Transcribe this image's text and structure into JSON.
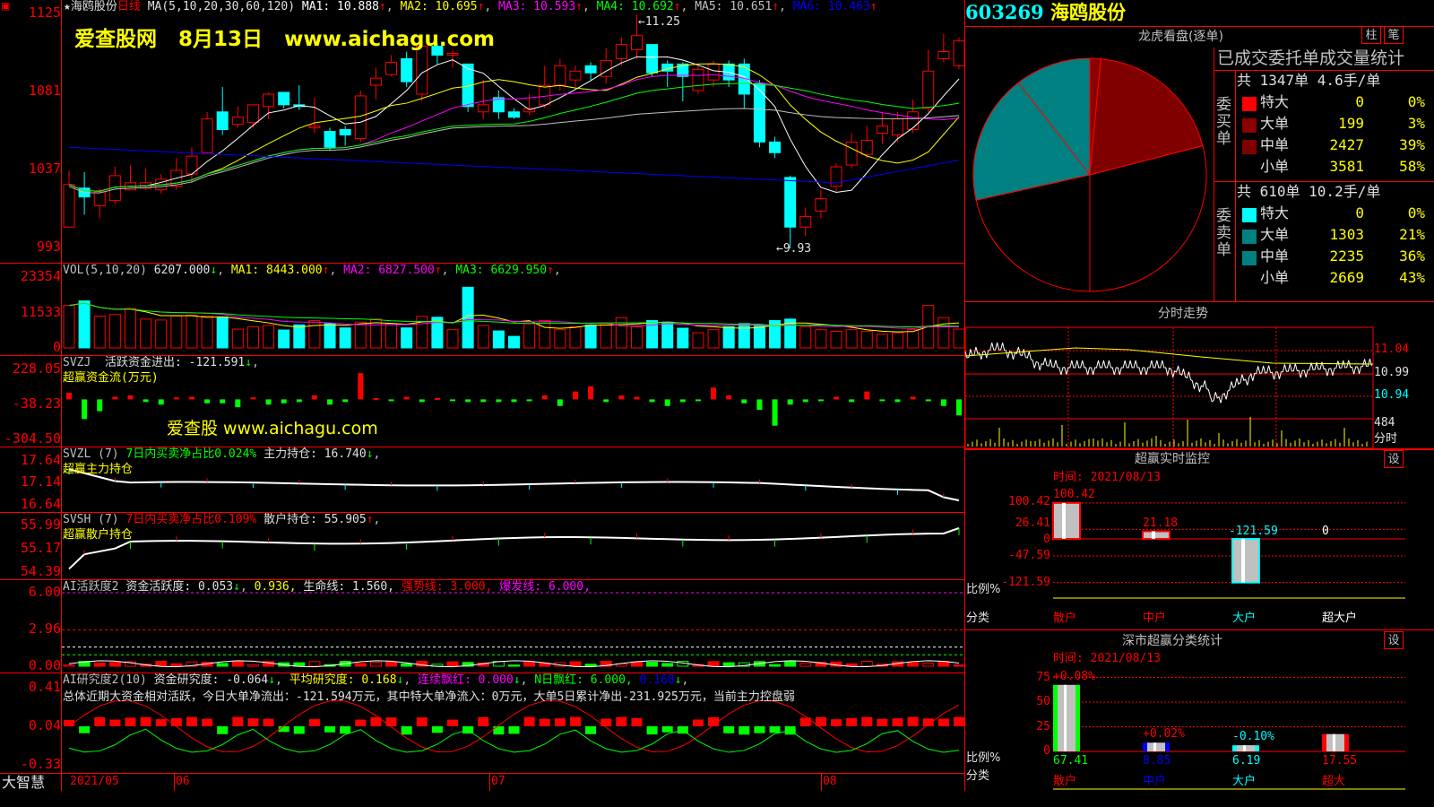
{
  "stock": {
    "code": "603269",
    "name": "海鸥股份",
    "period": "日线",
    "star": "★"
  },
  "watermark": {
    "site": "爱查股网",
    "date": "8月13日",
    "url": "www.aichagu.com",
    "small": "爱查股 www.aichagu.com"
  },
  "main": {
    "ma_params": "MA(5,10,20,30,60,120)",
    "ma": [
      {
        "label": "MA1:",
        "value": "10.888",
        "dir": "↑",
        "color": "#ffffff"
      },
      {
        "label": "MA2:",
        "value": "10.695",
        "dir": "↑",
        "color": "#ffff00"
      },
      {
        "label": "MA3:",
        "value": "10.593",
        "dir": "↑",
        "color": "#ff00ff"
      },
      {
        "label": "MA4:",
        "value": "10.692",
        "dir": "↑",
        "color": "#00ff00"
      },
      {
        "label": "MA5:",
        "value": "10.651",
        "dir": "↑",
        "color": "#c0c0c0"
      },
      {
        "label": "MA6:",
        "value": "10.463",
        "dir": "↑",
        "color": "#0000ff"
      }
    ],
    "axis": [
      "1125",
      "1081",
      "1037",
      "993"
    ],
    "high_marker": "11.25",
    "low_marker": "9.93",
    "candles": [
      [
        10.05,
        10.29,
        10.37,
        10.05
      ],
      [
        10.27,
        10.22,
        10.36,
        10.12
      ],
      [
        10.17,
        10.25,
        10.27,
        10.1
      ],
      [
        10.2,
        10.34,
        10.39,
        10.18
      ],
      [
        10.26,
        10.3,
        10.4,
        10.26
      ],
      [
        10.27,
        10.3,
        10.38,
        10.26
      ],
      [
        10.26,
        10.32,
        10.35,
        10.24
      ],
      [
        10.28,
        10.37,
        10.44,
        10.26
      ],
      [
        10.35,
        10.45,
        10.5,
        10.3
      ],
      [
        10.47,
        10.66,
        10.7,
        10.46
      ],
      [
        10.7,
        10.6,
        10.84,
        10.57
      ],
      [
        10.63,
        10.67,
        10.73,
        10.61
      ],
      [
        10.64,
        10.74,
        10.74,
        10.61
      ],
      [
        10.73,
        10.8,
        10.81,
        10.66
      ],
      [
        10.81,
        10.74,
        10.81,
        10.72
      ],
      [
        10.74,
        10.73,
        10.85,
        10.71
      ],
      [
        10.61,
        10.62,
        10.78,
        10.58
      ],
      [
        10.59,
        10.5,
        10.61,
        10.48
      ],
      [
        10.6,
        10.57,
        10.62,
        10.51
      ],
      [
        10.55,
        10.79,
        10.82,
        10.53
      ],
      [
        10.85,
        10.89,
        10.95,
        10.77
      ],
      [
        10.91,
        10.98,
        11.02,
        10.9
      ],
      [
        11.0,
        10.87,
        11.04,
        10.84
      ],
      [
        10.8,
        11.07,
        11.08,
        10.76
      ],
      [
        11.07,
        11.02,
        11.09,
        10.97
      ],
      [
        11.02,
        11.03,
        11.05,
        10.95
      ],
      [
        10.97,
        10.73,
        10.97,
        10.7
      ],
      [
        10.7,
        10.74,
        10.88,
        10.66
      ],
      [
        10.78,
        10.7,
        10.82,
        10.66
      ],
      [
        10.7,
        10.67,
        10.72,
        10.66
      ],
      [
        10.7,
        10.72,
        10.8,
        10.68
      ],
      [
        10.74,
        10.85,
        10.96,
        10.72
      ],
      [
        10.85,
        10.96,
        11.0,
        10.82
      ],
      [
        10.88,
        10.93,
        10.96,
        10.84
      ],
      [
        10.96,
        10.92,
        10.98,
        10.88
      ],
      [
        10.9,
        10.99,
        11.06,
        10.86
      ],
      [
        11.0,
        11.08,
        11.12,
        10.96
      ],
      [
        11.05,
        11.13,
        11.25,
        11.0
      ],
      [
        11.08,
        10.92,
        11.08,
        10.9
      ],
      [
        10.97,
        10.93,
        10.99,
        10.84
      ],
      [
        10.97,
        10.9,
        10.98,
        10.76
      ],
      [
        10.82,
        10.94,
        10.96,
        10.8
      ],
      [
        10.88,
        10.97,
        10.99,
        10.84
      ],
      [
        10.97,
        10.88,
        10.99,
        10.84
      ],
      [
        10.97,
        10.8,
        11.0,
        10.72
      ],
      [
        10.86,
        10.53,
        10.88,
        10.5
      ],
      [
        10.53,
        10.47,
        10.56,
        10.44
      ],
      [
        10.33,
        10.05,
        10.34,
        9.93
      ],
      [
        10.05,
        10.11,
        10.16,
        10.0
      ],
      [
        10.14,
        10.21,
        10.26,
        10.1
      ],
      [
        10.28,
        10.39,
        10.41,
        10.25
      ],
      [
        10.4,
        10.53,
        10.58,
        10.38
      ],
      [
        10.46,
        10.54,
        10.62,
        10.44
      ],
      [
        10.58,
        10.62,
        10.7,
        10.52
      ],
      [
        10.57,
        10.66,
        10.7,
        10.53
      ],
      [
        10.6,
        10.7,
        10.77,
        10.58
      ],
      [
        10.72,
        10.93,
        11.05,
        10.7
      ],
      [
        11.0,
        11.04,
        11.14,
        10.98
      ],
      [
        10.96,
        11.1,
        11.12,
        10.94
      ]
    ]
  },
  "vol": {
    "title": "VOL(5,10,20)",
    "value": "6207.000",
    "dir": "↓",
    "ma": [
      {
        "label": "MA1:",
        "value": "8443.000",
        "dir": "↑",
        "color": "#ffff00"
      },
      {
        "label": "MA2:",
        "value": "6827.500",
        "dir": "↑",
        "color": "#ff00ff"
      },
      {
        "label": "MA3:",
        "value": "6629.950",
        "dir": "↑",
        "color": "#00ff00"
      }
    ],
    "axis": [
      "23354",
      "11533",
      "0"
    ],
    "values": [
      14000,
      15500,
      10500,
      11000,
      13000,
      9500,
      9200,
      10500,
      10800,
      10500,
      10200,
      6200,
      7000,
      7400,
      5900,
      7600,
      9000,
      8000,
      6600,
      8500,
      9500,
      7800,
      6600,
      10400,
      10100,
      6000,
      20000,
      7400,
      5600,
      3800,
      8000,
      9000,
      6000,
      7000,
      7500,
      8000,
      10000,
      7000,
      9000,
      8500,
      6500,
      5000,
      6000,
      7000,
      8000,
      7500,
      9000,
      9500,
      7000,
      6000,
      5500,
      6000,
      5500,
      4500,
      5000,
      6000,
      14000,
      10000,
      6207
    ]
  },
  "svzj": {
    "title": "SVZJ",
    "label": "活跃资金进出:",
    "value": "-121.591",
    "dir": "↓",
    "sub": "超赢资金流(万元)",
    "axis": [
      "228.05",
      "-38.23",
      "-304.50"
    ],
    "values": [
      50,
      -150,
      -90,
      20,
      30,
      -20,
      -40,
      15,
      20,
      -30,
      -30,
      -60,
      15,
      -40,
      -30,
      -20,
      30,
      -40,
      -20,
      200,
      10,
      -10,
      20,
      -20,
      10,
      -10,
      -20,
      -20,
      -20,
      -20,
      -10,
      30,
      -50,
      60,
      100,
      -20,
      30,
      20,
      -20,
      -50,
      -20,
      -10,
      90,
      30,
      -30,
      -80,
      -200,
      -40,
      -20,
      -10,
      20,
      -20,
      60,
      -10,
      -20,
      20,
      -10,
      -50,
      -121.6
    ]
  },
  "svzl": {
    "title": "SVZL  (7)",
    "ratio": "7日内买卖净占比0.024%",
    "label": "主力持仓:",
    "value": "16.740",
    "dir": "↓",
    "sub": "超赢主力持仓",
    "axis": [
      "17.64",
      "17.14",
      "16.64"
    ]
  },
  "svsh": {
    "title": "SVSH  (7)",
    "ratio": "7日内买卖净占比0.109%",
    "label": "散户持仓:",
    "value": "55.905",
    "dir": "↑",
    "sub": "超赢散户持仓",
    "axis": [
      "55.99",
      "55.17",
      "54.39"
    ]
  },
  "ai_active": {
    "title": "AI活跃度2",
    "label": "资金活跃度:",
    "value": "0.053",
    "dir": "↓",
    "v2": "0.936,",
    "life": "生命线: 1.560,",
    "strong": "强势线: 3.000,",
    "burst": "爆发线: 6.000,",
    "axis": [
      "6.00",
      "2.96",
      "0.00"
    ]
  },
  "ai_research": {
    "title": "AI研究度2(10)",
    "label": "资金研究度:",
    "value": "-0.064",
    "dir": "↓",
    "avg": "平均研究度: 0.168",
    "cont": "连续飘红: 0.000",
    "nday": "N日飘红: 6.000,",
    "v5": "0.168",
    "summary": "总体近期大资金相对活跃，今日大单净流出：-121.594万元，其中特大单净流入：0万元，大单5日累计净出-231.925万元，当前主力控盘弱",
    "axis": [
      "0.41",
      "0.04",
      "-0.33"
    ]
  },
  "bottom": {
    "brand": "大智慧",
    "dates": [
      "2021/05",
      "06",
      "07",
      "08"
    ]
  },
  "right": {
    "dragon": {
      "title": "龙虎看盘(逐单)",
      "btn1": "柱",
      "btn2": "笔",
      "table_title": "已成交委托单成交量统计",
      "buy": {
        "side": "委买单",
        "summary": "共 1347单 4.6手/单",
        "rows": [
          {
            "label": "特大",
            "value": "0",
            "pct": "0%",
            "color": "#ff0000"
          },
          {
            "label": "大单",
            "value": "199",
            "pct": "3%",
            "color": "#8b0000"
          },
          {
            "label": "中单",
            "value": "2427",
            "pct": "39%",
            "color": "#800000"
          },
          {
            "label": "小单",
            "value": "3581",
            "pct": "58%",
            "color": "#000000"
          }
        ]
      },
      "sell": {
        "side": "委卖单",
        "summary": "共 610单 10.2手/单",
        "rows": [
          {
            "label": "特大",
            "value": "0",
            "pct": "0%",
            "color": "#00ffff"
          },
          {
            "label": "大单",
            "value": "1303",
            "pct": "21%",
            "color": "#008080"
          },
          {
            "label": "中单",
            "value": "2235",
            "pct": "36%",
            "color": "#008080"
          },
          {
            "label": "小单",
            "value": "2669",
            "pct": "43%",
            "color": "#000000"
          }
        ]
      }
    },
    "minute": {
      "title": "分时走势",
      "axis": [
        "11.04",
        "10.99",
        "10.94"
      ],
      "vol_label": "484",
      "vol_unit": "分时"
    },
    "monitor": {
      "title": "超赢实时监控",
      "set": "设",
      "time": "时间: 2021/08/13",
      "axis": [
        "100.42",
        "26.41",
        "0",
        "-47.59",
        "-121.59"
      ],
      "ratio": "比例%",
      "cat": "分类",
      "bars": [
        {
          "label": "散户",
          "value": "100.42",
          "color": "#ff0000"
        },
        {
          "label": "中户",
          "value": "21.18",
          "color": "#ff0000"
        },
        {
          "label": "大户",
          "value": "-121.59",
          "color": "#00ffff"
        },
        {
          "label": "超大户",
          "value": "0",
          "color": "#ffffff"
        }
      ]
    },
    "stats": {
      "title": "深市超赢分类统计",
      "set": "设",
      "time": "时间: 2021/08/13",
      "axis": [
        "75",
        "50",
        "25",
        "0"
      ],
      "ratio": "比例%",
      "cat": "分类",
      "bars": [
        {
          "label": "散户",
          "value": "67.41",
          "change": "+0.08%",
          "color": "#00ff00",
          "lcolor": "#ff0000"
        },
        {
          "label": "中户",
          "value": "8.85",
          "change": "+0.02%",
          "color": "#0000ff",
          "lcolor": "#ff0000"
        },
        {
          "label": "大户",
          "value": "6.19",
          "change": "-0.10%",
          "color": "#00ffff",
          "lcolor": "#00ffff"
        },
        {
          "label": "超大",
          "value": "17.55",
          "change": "",
          "color": "#ff0000",
          "lcolor": "#ff0000"
        }
      ]
    }
  }
}
